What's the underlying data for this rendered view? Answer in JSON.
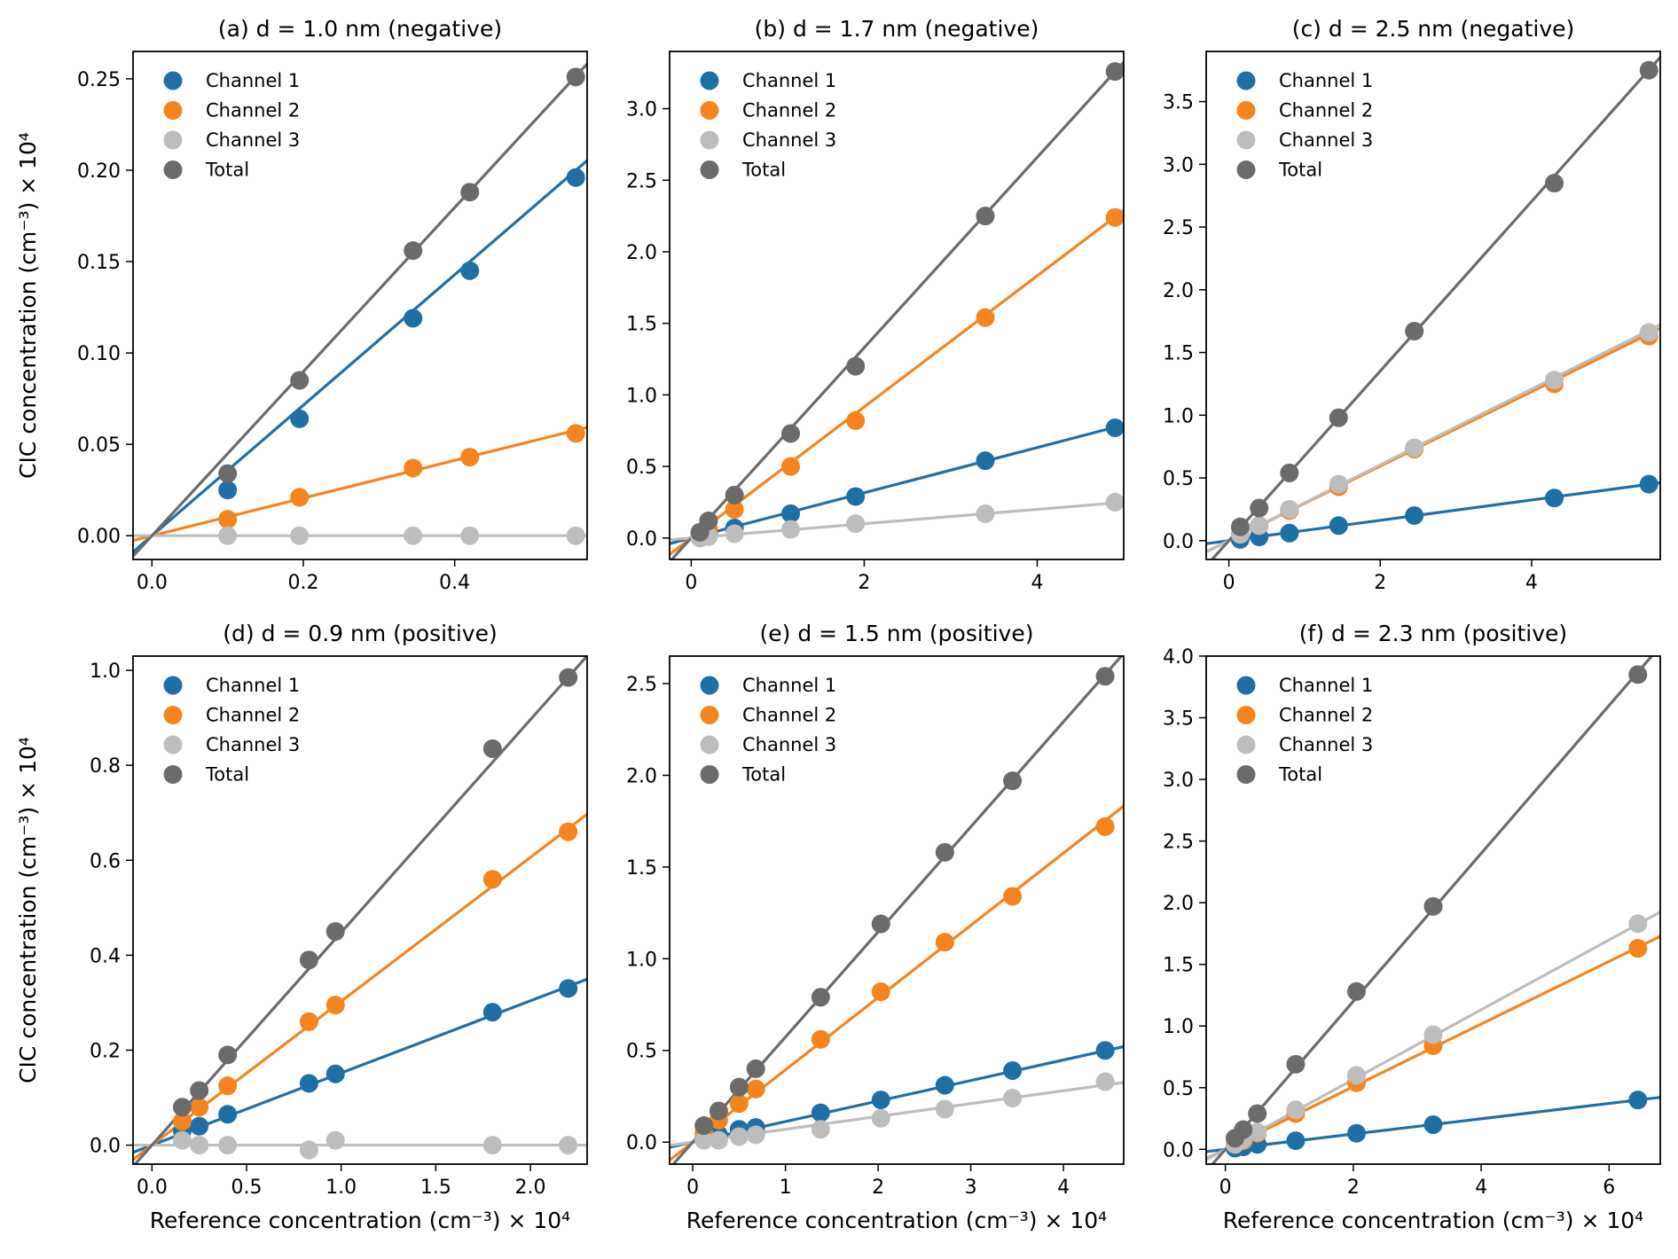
{
  "colors": {
    "channel_1": "#1f6fa7",
    "channel_2": "#f5841f",
    "channel_3": "#bdbdbd",
    "total": "#6b6b6b"
  },
  "legend": [
    "Channel 1",
    "Channel 2",
    "Channel 3",
    "Total"
  ],
  "xlabel": "Reference concentration (cm⁻³) × 10⁴",
  "ylabel": "CIC concentration (cm⁻³) × 10⁴",
  "chart_data": [
    {
      "type": "scatter",
      "title": "(a) d = 1.0 nm (negative)",
      "xlim": [
        -0.025,
        0.575
      ],
      "ylim": [
        -0.013,
        0.265
      ],
      "xticks": [
        "0.0",
        "0.2",
        "0.4"
      ],
      "xtick_values": [
        0.0,
        0.2,
        0.4
      ],
      "yticks": [
        "0.00",
        "0.05",
        "0.10",
        "0.15",
        "0.20",
        "0.25"
      ],
      "ytick_values": [
        0.0,
        0.05,
        0.1,
        0.15,
        0.2,
        0.25
      ],
      "show_ylabel": true,
      "show_xlabel": false,
      "series": [
        {
          "name": "Channel 1",
          "x": [
            0.1,
            0.195,
            0.345,
            0.42,
            0.56
          ],
          "y": [
            0.025,
            0.064,
            0.119,
            0.145,
            0.196
          ],
          "slope": 0.357,
          "intercept": 0.0
        },
        {
          "name": "Channel 2",
          "x": [
            0.1,
            0.195,
            0.345,
            0.42,
            0.56
          ],
          "y": [
            0.009,
            0.021,
            0.037,
            0.043,
            0.056
          ],
          "slope": 0.103,
          "intercept": 0.0
        },
        {
          "name": "Channel 3",
          "x": [
            0.1,
            0.195,
            0.345,
            0.42,
            0.56
          ],
          "y": [
            0.0,
            0.0,
            0.0,
            0.0,
            0.0
          ],
          "slope": 0.0,
          "intercept": 0.0
        },
        {
          "name": "Total",
          "x": [
            0.1,
            0.195,
            0.345,
            0.42,
            0.56
          ],
          "y": [
            0.034,
            0.085,
            0.156,
            0.188,
            0.251
          ],
          "slope": 0.449,
          "intercept": 0.0
        }
      ]
    },
    {
      "type": "scatter",
      "title": "(b) d = 1.7 nm (negative)",
      "xlim": [
        -0.25,
        5.0
      ],
      "ylim": [
        -0.15,
        3.4
      ],
      "xticks": [
        "0",
        "2",
        "4"
      ],
      "xtick_values": [
        0,
        2,
        4
      ],
      "yticks": [
        "0.0",
        "0.5",
        "1.0",
        "1.5",
        "2.0",
        "2.5",
        "3.0"
      ],
      "ytick_values": [
        0,
        0.5,
        1.0,
        1.5,
        2.0,
        2.5,
        3.0
      ],
      "show_ylabel": false,
      "show_xlabel": false,
      "series": [
        {
          "name": "Channel 1",
          "x": [
            0.1,
            0.2,
            0.5,
            1.15,
            1.9,
            3.4,
            4.9
          ],
          "y": [
            0.01,
            0.02,
            0.07,
            0.17,
            0.29,
            0.54,
            0.77
          ],
          "slope": 0.158,
          "intercept": 0.0
        },
        {
          "name": "Channel 2",
          "x": [
            0.1,
            0.2,
            0.5,
            1.15,
            1.9,
            3.4,
            4.9
          ],
          "y": [
            0.03,
            0.06,
            0.2,
            0.5,
            0.82,
            1.54,
            2.24
          ],
          "slope": 0.458,
          "intercept": 0.0
        },
        {
          "name": "Channel 3",
          "x": [
            0.1,
            0.2,
            0.5,
            1.15,
            1.9,
            3.4,
            4.9
          ],
          "y": [
            0.0,
            0.01,
            0.03,
            0.06,
            0.1,
            0.17,
            0.25
          ],
          "slope": 0.05,
          "intercept": 0.0
        },
        {
          "name": "Total",
          "x": [
            0.1,
            0.2,
            0.5,
            1.15,
            1.9,
            3.4,
            4.9
          ],
          "y": [
            0.04,
            0.12,
            0.3,
            0.73,
            1.2,
            2.25,
            3.26
          ],
          "slope": 0.665,
          "intercept": 0.0
        }
      ]
    },
    {
      "type": "scatter",
      "title": "(c) d = 2.5 nm (negative)",
      "xlim": [
        -0.3,
        5.7
      ],
      "ylim": [
        -0.15,
        3.9
      ],
      "xticks": [
        "0",
        "2",
        "4"
      ],
      "xtick_values": [
        0,
        2,
        4
      ],
      "yticks": [
        "0.0",
        "0.5",
        "1.0",
        "1.5",
        "2.0",
        "2.5",
        "3.0",
        "3.5"
      ],
      "ytick_values": [
        0,
        0.5,
        1.0,
        1.5,
        2.0,
        2.5,
        3.0,
        3.5
      ],
      "show_ylabel": false,
      "show_xlabel": false,
      "series": [
        {
          "name": "Channel 1",
          "x": [
            0.15,
            0.4,
            0.8,
            1.45,
            2.45,
            4.3,
            5.55
          ],
          "y": [
            0.01,
            0.03,
            0.06,
            0.12,
            0.2,
            0.34,
            0.45
          ],
          "slope": 0.081,
          "intercept": 0.0
        },
        {
          "name": "Channel 2",
          "x": [
            0.15,
            0.4,
            0.8,
            1.45,
            2.45,
            4.3,
            5.55
          ],
          "y": [
            0.05,
            0.12,
            0.24,
            0.43,
            0.73,
            1.25,
            1.63
          ],
          "slope": 0.297,
          "intercept": 0.0
        },
        {
          "name": "Channel 3",
          "x": [
            0.15,
            0.4,
            0.8,
            1.45,
            2.45,
            4.3,
            5.55
          ],
          "y": [
            0.05,
            0.12,
            0.25,
            0.45,
            0.74,
            1.28,
            1.66
          ],
          "slope": 0.302,
          "intercept": 0.0
        },
        {
          "name": "Total",
          "x": [
            0.15,
            0.4,
            0.8,
            1.45,
            2.45,
            4.3,
            5.55
          ],
          "y": [
            0.11,
            0.26,
            0.54,
            0.98,
            1.67,
            2.85,
            3.75
          ],
          "slope": 0.676,
          "intercept": 0.0
        }
      ]
    },
    {
      "type": "scatter",
      "title": "(d) d = 0.9 nm (positive)",
      "xlim": [
        -0.1,
        2.3
      ],
      "ylim": [
        -0.04,
        1.03
      ],
      "xticks": [
        "0.0",
        "0.5",
        "1.0",
        "1.5",
        "2.0"
      ],
      "xtick_values": [
        0,
        0.5,
        1.0,
        1.5,
        2.0
      ],
      "yticks": [
        "0.0",
        "0.2",
        "0.4",
        "0.6",
        "0.8",
        "1.0"
      ],
      "ytick_values": [
        0,
        0.2,
        0.4,
        0.6,
        0.8,
        1.0
      ],
      "show_ylabel": true,
      "show_xlabel": true,
      "series": [
        {
          "name": "Channel 1",
          "x": [
            0.16,
            0.25,
            0.4,
            0.83,
            0.97,
            1.8,
            2.2
          ],
          "y": [
            0.03,
            0.04,
            0.065,
            0.13,
            0.15,
            0.28,
            0.33
          ],
          "slope": 0.152,
          "intercept": 0.0
        },
        {
          "name": "Channel 2",
          "x": [
            0.16,
            0.25,
            0.4,
            0.83,
            0.97,
            1.8,
            2.2
          ],
          "y": [
            0.05,
            0.08,
            0.125,
            0.26,
            0.295,
            0.56,
            0.66
          ],
          "slope": 0.303,
          "intercept": 0.0
        },
        {
          "name": "Channel 3",
          "x": [
            0.16,
            0.25,
            0.4,
            0.83,
            0.97,
            1.8,
            2.2
          ],
          "y": [
            0.01,
            0.0,
            0.0,
            -0.01,
            0.01,
            0.0,
            0.0
          ],
          "slope": 0.0,
          "intercept": 0.0
        },
        {
          "name": "Total",
          "x": [
            0.16,
            0.25,
            0.4,
            0.83,
            0.97,
            1.8,
            2.2
          ],
          "y": [
            0.08,
            0.115,
            0.19,
            0.39,
            0.45,
            0.835,
            0.985
          ],
          "slope": 0.448,
          "intercept": 0.0
        }
      ]
    },
    {
      "type": "scatter",
      "title": "(e) d = 1.5 nm (positive)",
      "xlim": [
        -0.25,
        4.65
      ],
      "ylim": [
        -0.12,
        2.65
      ],
      "xticks": [
        "0",
        "1",
        "2",
        "3",
        "4"
      ],
      "xtick_values": [
        0,
        1,
        2,
        3,
        4
      ],
      "yticks": [
        "0.0",
        "0.5",
        "1.0",
        "1.5",
        "2.0",
        "2.5"
      ],
      "ytick_values": [
        0,
        0.5,
        1.0,
        1.5,
        2.0,
        2.5
      ],
      "show_ylabel": false,
      "show_xlabel": true,
      "series": [
        {
          "name": "Channel 1",
          "x": [
            0.12,
            0.28,
            0.5,
            0.68,
            1.38,
            2.03,
            2.72,
            3.45,
            4.45
          ],
          "y": [
            0.02,
            0.04,
            0.07,
            0.08,
            0.16,
            0.23,
            0.31,
            0.39,
            0.5
          ],
          "slope": 0.112,
          "intercept": 0.0
        },
        {
          "name": "Channel 2",
          "x": [
            0.12,
            0.28,
            0.5,
            0.68,
            1.38,
            2.03,
            2.72,
            3.45,
            4.45
          ],
          "y": [
            0.05,
            0.12,
            0.21,
            0.29,
            0.56,
            0.82,
            1.09,
            1.34,
            1.72
          ],
          "slope": 0.394,
          "intercept": 0.0
        },
        {
          "name": "Channel 3",
          "x": [
            0.12,
            0.28,
            0.5,
            0.68,
            1.38,
            2.03,
            2.72,
            3.45,
            4.45
          ],
          "y": [
            0.01,
            0.01,
            0.03,
            0.04,
            0.07,
            0.13,
            0.18,
            0.24,
            0.33
          ],
          "slope": 0.07,
          "intercept": 0.0
        },
        {
          "name": "Total",
          "x": [
            0.12,
            0.28,
            0.5,
            0.68,
            1.38,
            2.03,
            2.72,
            3.45,
            4.45
          ],
          "y": [
            0.09,
            0.17,
            0.3,
            0.4,
            0.79,
            1.19,
            1.58,
            1.97,
            2.54
          ],
          "slope": 0.573,
          "intercept": 0.0
        }
      ]
    },
    {
      "type": "scatter",
      "title": "(f) d = 2.3 nm (positive)",
      "xlim": [
        -0.3,
        6.8
      ],
      "ylim": [
        -0.12,
        4.0
      ],
      "xticks": [
        "0",
        "2",
        "4",
        "6"
      ],
      "xtick_values": [
        0,
        2,
        4,
        6
      ],
      "yticks": [
        "0.0",
        "0.5",
        "1.0",
        "1.5",
        "2.0",
        "2.5",
        "3.0",
        "3.5",
        "4.0"
      ],
      "ytick_values": [
        0,
        0.5,
        1.0,
        1.5,
        2.0,
        2.5,
        3.0,
        3.5,
        4.0
      ],
      "show_ylabel": false,
      "show_xlabel": true,
      "series": [
        {
          "name": "Channel 1",
          "x": [
            0.15,
            0.28,
            0.5,
            1.1,
            2.05,
            3.25,
            6.45
          ],
          "y": [
            0.01,
            0.02,
            0.04,
            0.07,
            0.13,
            0.2,
            0.4
          ],
          "slope": 0.062,
          "intercept": 0.0
        },
        {
          "name": "Channel 2",
          "x": [
            0.15,
            0.28,
            0.5,
            1.1,
            2.05,
            3.25,
            6.45
          ],
          "y": [
            0.04,
            0.07,
            0.13,
            0.29,
            0.54,
            0.84,
            1.63
          ],
          "slope": 0.254,
          "intercept": 0.0
        },
        {
          "name": "Channel 3",
          "x": [
            0.15,
            0.28,
            0.5,
            1.1,
            2.05,
            3.25,
            6.45
          ],
          "y": [
            0.04,
            0.08,
            0.14,
            0.32,
            0.6,
            0.93,
            1.83
          ],
          "slope": 0.283,
          "intercept": 0.0
        },
        {
          "name": "Total",
          "x": [
            0.15,
            0.28,
            0.5,
            1.1,
            2.05,
            3.25,
            6.45
          ],
          "y": [
            0.09,
            0.16,
            0.29,
            0.69,
            1.28,
            1.97,
            3.85
          ],
          "slope": 0.6,
          "intercept": 0.0
        }
      ]
    }
  ]
}
